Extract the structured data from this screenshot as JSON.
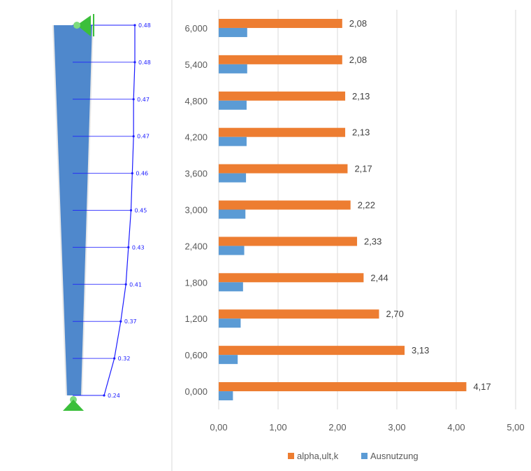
{
  "diagram": {
    "values": [
      "0.48",
      "0.48",
      "0.47",
      "0.47",
      "0.46",
      "0.45",
      "0.43",
      "0.41",
      "0.37",
      "0.32",
      "0.24"
    ],
    "column_color": "#4f88cc",
    "line_color": "#1a1aff",
    "support_color": "#3bbf3b"
  },
  "chart_data": {
    "type": "bar",
    "orientation": "horizontal",
    "categories": [
      "6,000",
      "5,400",
      "4,800",
      "4,200",
      "3,600",
      "3,000",
      "2,400",
      "1,800",
      "1,200",
      "0,600",
      "0,000"
    ],
    "series": [
      {
        "name": "alpha,ult,k",
        "color": "#ed7d31",
        "values": [
          2.08,
          2.08,
          2.13,
          2.13,
          2.17,
          2.22,
          2.33,
          2.44,
          2.7,
          3.13,
          4.17
        ],
        "labels": [
          "2,08",
          "2,08",
          "2,13",
          "2,13",
          "2,17",
          "2,22",
          "2,33",
          "2,44",
          "2,70",
          "3,13",
          "4,17"
        ]
      },
      {
        "name": "Ausnutzung",
        "color": "#5b9bd5",
        "values": [
          0.48,
          0.48,
          0.47,
          0.47,
          0.46,
          0.45,
          0.43,
          0.41,
          0.37,
          0.32,
          0.24
        ]
      }
    ],
    "xlim": [
      0,
      5
    ],
    "xticks": [
      "0,00",
      "1,00",
      "2,00",
      "3,00",
      "4,00",
      "5,00"
    ],
    "grid": true,
    "legend": "bottom"
  }
}
